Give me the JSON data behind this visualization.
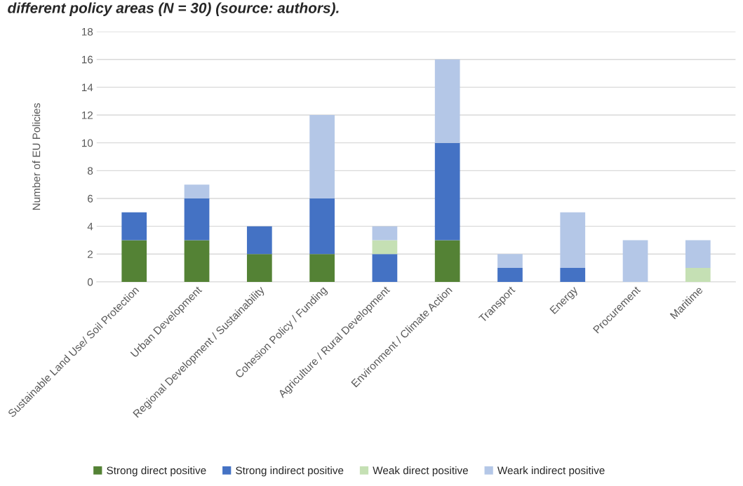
{
  "chart_data": {
    "type": "bar",
    "stacked": true,
    "title": "different policy areas (N = 30) (source: authors).",
    "ylabel": "Number of EU Policies",
    "categories": [
      "Sustainable Land Use/ Soil Protection",
      "Urban Development",
      "Regional Development / Sustainability",
      "Cohesion Policy / Funding",
      "Agriculture / Rural Development",
      "Environment / Climate Action",
      "Transport",
      "Energy",
      "Procurement",
      "Maritime"
    ],
    "series": [
      {
        "name": "Strong direct positive",
        "color": "#548235",
        "values": [
          3,
          3,
          2,
          2,
          0,
          3,
          0,
          0,
          0,
          0
        ]
      },
      {
        "name": "Strong indirect positive",
        "color": "#4472c4",
        "values": [
          2,
          3,
          2,
          4,
          2,
          7,
          1,
          1,
          0,
          0
        ]
      },
      {
        "name": "Weak direct positive",
        "color": "#c5e0b4",
        "values": [
          0,
          0,
          0,
          0,
          1,
          0,
          0,
          0,
          0,
          1
        ]
      },
      {
        "name": "Weark indirect positive",
        "color": "#b4c7e7",
        "values": [
          0,
          1,
          0,
          6,
          1,
          6,
          1,
          4,
          3,
          2
        ]
      }
    ],
    "ylim": [
      0,
      18
    ],
    "yticks": [
      0,
      2,
      4,
      6,
      8,
      10,
      12,
      14,
      16,
      18
    ],
    "grid": "y",
    "legend": "bottom"
  }
}
